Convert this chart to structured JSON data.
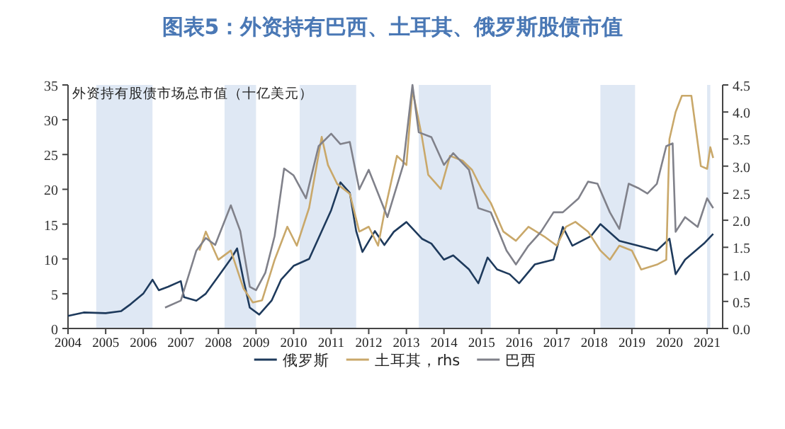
{
  "chart_data": {
    "type": "line",
    "title": "图表5：外资持有巴西、土耳其、俄罗斯股债市值",
    "annotations": [
      "外资持有股债市场总市值（十亿美元）"
    ],
    "legend": "bottom",
    "xlim": [
      "2004-01",
      "2021-06"
    ],
    "xticks": [
      "2004",
      "2005",
      "2006",
      "2007",
      "2008",
      "2009",
      "2010",
      "2011",
      "2012",
      "2013",
      "2014",
      "2015",
      "2016",
      "2017",
      "2018",
      "2019",
      "2020",
      "2021"
    ],
    "ylim": [
      0,
      35
    ],
    "yticks": [
      0,
      5,
      10,
      15,
      20,
      25,
      30,
      35
    ],
    "y2lim": [
      0,
      4.5
    ],
    "y2ticks": [
      {
        "value": 0,
        "label": "0.0"
      },
      {
        "value": 0.5,
        "label": "0.5"
      },
      {
        "value": 1,
        "label": "1.0"
      },
      {
        "value": 1.5,
        "label": "1.5"
      },
      {
        "value": 2,
        "label": "2.0"
      },
      {
        "value": 2.5,
        "label": "2.5"
      },
      {
        "value": 3,
        "label": "3.0"
      },
      {
        "value": 3.5,
        "label": "3.5"
      },
      {
        "value": 4,
        "label": "4.0"
      },
      {
        "value": 4.5,
        "label": "4.5"
      }
    ],
    "bands": [
      {
        "axis": "x",
        "from": "2004-10",
        "to": "2006-04",
        "color": "#dfe8f4"
      },
      {
        "axis": "x",
        "from": "2008-03",
        "to": "2009-01",
        "color": "#dfe8f4"
      },
      {
        "axis": "x",
        "from": "2010-03",
        "to": "2011-09",
        "color": "#dfe8f4"
      },
      {
        "axis": "x",
        "from": "2013-05",
        "to": "2015-04",
        "color": "#dfe8f4"
      },
      {
        "axis": "x",
        "from": "2018-03",
        "to": "2019-02",
        "color": "#dfe8f4"
      },
      {
        "axis": "x",
        "from": "2021-01",
        "to": "2021-02",
        "color": "#dfe8f4"
      }
    ],
    "series": [
      {
        "name": "俄罗斯",
        "color": "#1e3a5c",
        "x": [
          "2004-01",
          "2004-06",
          "2005-01",
          "2005-06",
          "2005-09",
          "2006-01",
          "2006-04",
          "2006-06",
          "2006-09",
          "2007-01",
          "2007-02",
          "2007-06",
          "2007-09",
          "2008-01",
          "2008-05",
          "2008-07",
          "2008-09",
          "2008-11",
          "2009-02",
          "2009-06",
          "2009-09",
          "2010-01",
          "2010-06",
          "2010-09",
          "2011-01",
          "2011-04",
          "2011-07",
          "2011-09",
          "2011-11",
          "2012-03",
          "2012-06",
          "2012-09",
          "2013-01",
          "2013-06",
          "2013-09",
          "2014-01",
          "2014-04",
          "2014-09",
          "2014-12",
          "2015-03",
          "2015-06",
          "2015-10",
          "2016-01",
          "2016-06",
          "2016-12",
          "2017-03",
          "2017-06",
          "2017-12",
          "2018-03",
          "2018-09",
          "2019-03",
          "2019-09",
          "2020-01",
          "2020-03",
          "2020-06",
          "2020-12",
          "2021-03"
        ],
        "values": [
          1.8,
          2.3,
          2.2,
          2.5,
          3.5,
          5,
          7,
          5.5,
          6,
          6.8,
          4.5,
          4,
          5,
          7.5,
          10,
          11.5,
          7,
          3,
          2,
          4,
          7,
          9,
          10,
          13,
          17,
          21,
          19.5,
          14,
          11,
          14,
          12,
          13.9,
          15.3,
          12.9,
          12.2,
          9.9,
          10.5,
          8.5,
          6.5,
          10.2,
          8.5,
          7.8,
          6.5,
          9.2,
          9.9,
          14.6,
          11.9,
          13.3,
          15,
          12.6,
          11.9,
          11.2,
          12.9,
          7.8,
          9.9,
          12.2,
          13.6
        ]
      },
      {
        "name": "土耳其，rhs",
        "color": "#c9a86a",
        "axis": "y2",
        "x": [
          "2007-07",
          "2007-09",
          "2008-01",
          "2008-05",
          "2008-09",
          "2008-12",
          "2009-03",
          "2009-07",
          "2009-11",
          "2010-02",
          "2010-06",
          "2010-10",
          "2010-12",
          "2011-03",
          "2011-07",
          "2011-10",
          "2012-01",
          "2012-04",
          "2012-06",
          "2012-10",
          "2013-01",
          "2013-03",
          "2013-06",
          "2013-08",
          "2013-12",
          "2014-03",
          "2014-07",
          "2014-10",
          "2015-01",
          "2015-04",
          "2015-08",
          "2015-12",
          "2016-04",
          "2016-09",
          "2017-01",
          "2017-04",
          "2017-07",
          "2017-11",
          "2018-03",
          "2018-06",
          "2018-09",
          "2019-01",
          "2019-04",
          "2019-09",
          "2019-12",
          "2020-01",
          "2020-03",
          "2020-05",
          "2020-08",
          "2020-11",
          "2021-01",
          "2021-02",
          "2021-03"
        ],
        "values": [
          1.44,
          1.79,
          1.27,
          1.44,
          0.74,
          0.48,
          0.52,
          1.27,
          1.88,
          1.53,
          2.23,
          3.54,
          3.02,
          2.67,
          2.49,
          1.79,
          1.88,
          1.53,
          2.14,
          3.19,
          3.02,
          4.41,
          3.54,
          2.84,
          2.58,
          3.19,
          3.1,
          2.93,
          2.58,
          2.32,
          1.79,
          1.62,
          1.88,
          1.7,
          1.53,
          1.88,
          1.97,
          1.79,
          1.44,
          1.27,
          1.53,
          1.44,
          1.09,
          1.18,
          1.27,
          3.5,
          4.0,
          4.3,
          4.3,
          3.0,
          2.95,
          3.35,
          3.15
        ]
      },
      {
        "name": "巴西",
        "color": "#80818a",
        "x": [
          "2006-08",
          "2007-01",
          "2007-06",
          "2007-09",
          "2007-12",
          "2008-05",
          "2008-08",
          "2008-11",
          "2009-01",
          "2009-04",
          "2009-07",
          "2009-10",
          "2010-01",
          "2010-05",
          "2010-09",
          "2011-01",
          "2011-04",
          "2011-07",
          "2011-10",
          "2012-01",
          "2012-04",
          "2012-07",
          "2012-12",
          "2013-03",
          "2013-05",
          "2013-09",
          "2014-01",
          "2014-04",
          "2014-09",
          "2014-12",
          "2015-04",
          "2015-09",
          "2015-12",
          "2016-04",
          "2016-08",
          "2016-12",
          "2017-03",
          "2017-08",
          "2017-11",
          "2018-02",
          "2018-06",
          "2018-09",
          "2018-12",
          "2019-03",
          "2019-06",
          "2019-09",
          "2019-12",
          "2020-02",
          "2020-03",
          "2020-06",
          "2020-10",
          "2021-01",
          "2021-03"
        ],
        "values": [
          3,
          4,
          11.2,
          13,
          12,
          17.7,
          14,
          6,
          5.5,
          8,
          13.3,
          23,
          22,
          18.7,
          26.2,
          28,
          26.5,
          26.8,
          20,
          22.8,
          19.4,
          16,
          23.5,
          35,
          28.2,
          27.5,
          23.5,
          25.2,
          22.8,
          17.3,
          16.7,
          11.2,
          9.2,
          11.9,
          13.9,
          16.7,
          16.7,
          18.7,
          21.1,
          20.8,
          16.7,
          14.3,
          20.8,
          20.2,
          19.4,
          20.8,
          26.2,
          26.6,
          13.9,
          16,
          14.6,
          18.7,
          17.3
        ]
      }
    ]
  }
}
